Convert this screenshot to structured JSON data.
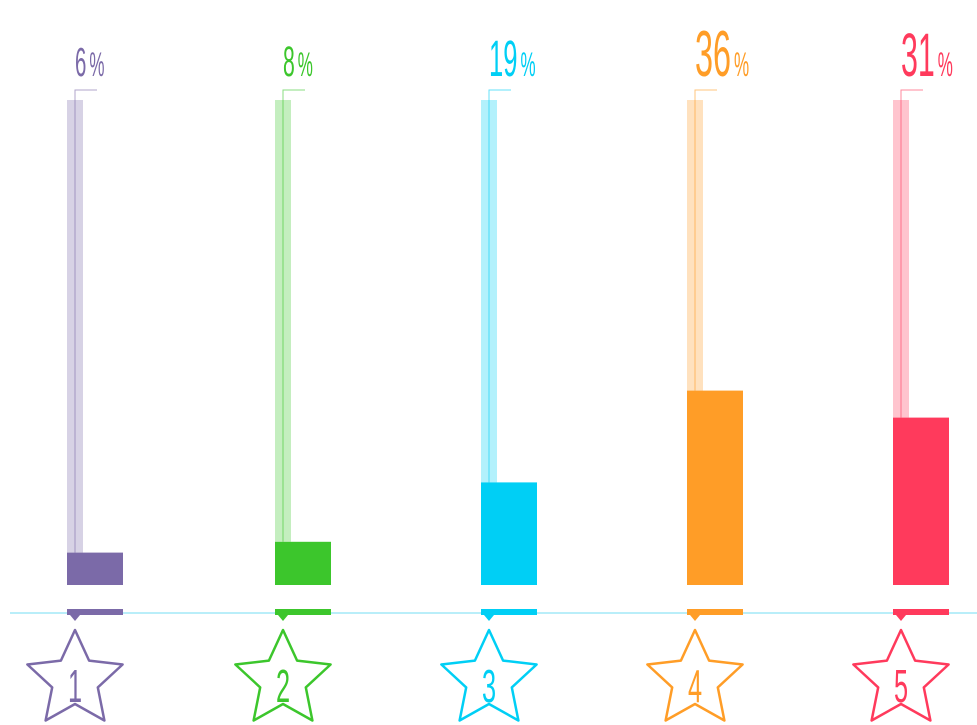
{
  "chart_data": {
    "type": "bar",
    "categories": [
      "1",
      "2",
      "3",
      "4",
      "5"
    ],
    "values": [
      6,
      8,
      19,
      36,
      31
    ],
    "value_labels": [
      "6%",
      "8%",
      "19%",
      "36%",
      "31%"
    ],
    "colors": [
      "#7b6aa8",
      "#3cc62c",
      "#00cff5",
      "#ff9d27",
      "#ff3a5c"
    ],
    "ylim": [
      0,
      100
    ]
  }
}
